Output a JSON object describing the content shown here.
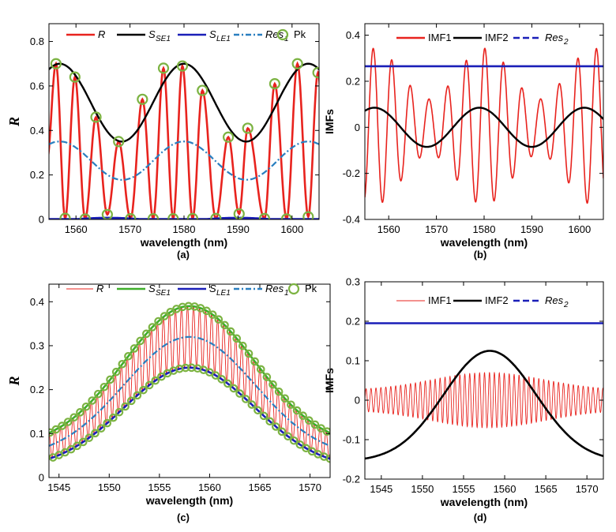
{
  "colors": {
    "R": "#e8231e",
    "SE": "#000000",
    "LE": "#1a1fb8",
    "Res": "#2a7fc0",
    "Pk": "#7cb342",
    "IMF1": "#e8231e",
    "IMF2": "#000000",
    "Res2": "#1a1fb8"
  },
  "chart_data": [
    {
      "id": "a",
      "type": "line",
      "caption": "(a)",
      "xlabel": "wavelength (nm)",
      "ylabel": "R",
      "xlim": [
        1555,
        1605
      ],
      "ylim": [
        0,
        0.88
      ],
      "xticks": [
        1560,
        1570,
        1580,
        1590,
        1600
      ],
      "yticks": [
        0,
        0.2,
        0.4,
        0.6,
        0.8
      ],
      "xtick_labels": [
        "1560",
        "1570",
        "1580",
        "1590",
        "1600"
      ],
      "ytick_labels": [
        "0",
        "0.2",
        "0.4",
        "0.6",
        "0.8"
      ],
      "legend": [
        {
          "name": "R",
          "sub": "",
          "style": "solid-red"
        },
        {
          "name": "S",
          "sub": "SE1",
          "style": "solid-black"
        },
        {
          "name": "S",
          "sub": "LE1",
          "style": "solid-blue"
        },
        {
          "name": "Res",
          "sub": "1",
          "style": "dash-cyan"
        },
        {
          "name": "Pk",
          "sub": "",
          "style": "circle-green"
        }
      ],
      "peaks_upper": [
        [
          1556.3,
          0.7
        ],
        [
          1559.8,
          0.64
        ],
        [
          1563.7,
          0.46
        ],
        [
          1567.9,
          0.35
        ],
        [
          1572.3,
          0.54
        ],
        [
          1576.2,
          0.68
        ],
        [
          1579.7,
          0.69
        ],
        [
          1583.4,
          0.58
        ],
        [
          1588.2,
          0.37
        ],
        [
          1591.8,
          0.41
        ],
        [
          1596.8,
          0.61
        ],
        [
          1601.0,
          0.7
        ],
        [
          1604.8,
          0.66
        ]
      ],
      "peaks_lower": [
        [
          1558.0,
          0.005
        ],
        [
          1561.7,
          0.002
        ],
        [
          1565.8,
          0.022
        ],
        [
          1570.1,
          0.003
        ],
        [
          1574.3,
          0.003
        ],
        [
          1578.0,
          0.003
        ],
        [
          1581.6,
          0.004
        ],
        [
          1585.9,
          0.004
        ],
        [
          1590.2,
          0.025
        ],
        [
          1594.9,
          0.004
        ],
        [
          1599.0,
          0.002
        ],
        [
          1603.0,
          0.012
        ]
      ]
    },
    {
      "id": "b",
      "type": "line",
      "caption": "(b)",
      "xlabel": "wavelength (nm)",
      "ylabel": "IMFs",
      "xlim": [
        1555,
        1605
      ],
      "ylim": [
        -0.4,
        0.45
      ],
      "xticks": [
        1560,
        1570,
        1580,
        1590,
        1600
      ],
      "yticks": [
        -0.4,
        -0.2,
        0,
        0.2,
        0.4
      ],
      "xtick_labels": [
        "1560",
        "1570",
        "1580",
        "1590",
        "1600"
      ],
      "ytick_labels": [
        "-0.4",
        "-0.2",
        "0",
        "0.2",
        "0.4"
      ],
      "legend": [
        {
          "name": "IMF1",
          "sub": "",
          "style": "solid-red"
        },
        {
          "name": "IMF2",
          "sub": "",
          "style": "solid-black"
        },
        {
          "name": "Res",
          "sub": "2",
          "style": "dash-blue"
        }
      ],
      "res2": 0.265
    },
    {
      "id": "c",
      "type": "line",
      "caption": "(c)",
      "xlabel": "wavelength (nm)",
      "ylabel": "R",
      "xlim": [
        1544,
        1572
      ],
      "ylim": [
        0,
        0.44
      ],
      "xticks": [
        1545,
        1550,
        1555,
        1560,
        1565,
        1570
      ],
      "yticks": [
        0,
        0.1,
        0.2,
        0.3,
        0.4
      ],
      "xtick_labels": [
        "1545",
        "1550",
        "1555",
        "1560",
        "1565",
        "1570"
      ],
      "ytick_labels": [
        "0",
        "0.1",
        "0.2",
        "0.3",
        "0.4"
      ],
      "legend": [
        {
          "name": "R",
          "sub": "",
          "style": "thin-red"
        },
        {
          "name": "S",
          "sub": "SE1",
          "style": "solid-green"
        },
        {
          "name": "S",
          "sub": "LE1",
          "style": "solid-blue"
        },
        {
          "name": "Res",
          "sub": "1",
          "style": "dash-cyan"
        },
        {
          "name": "Pk",
          "sub": "",
          "style": "circle-green"
        }
      ],
      "upper_envelope": {
        "base": 0.07,
        "amp": 0.32,
        "center": 1558,
        "sigma": 6.5
      },
      "lower_envelope": {
        "base": 0.02,
        "amp": 0.23,
        "center": 1558,
        "sigma": 6.5
      },
      "fringe_period_nm": 0.6
    },
    {
      "id": "d",
      "type": "line",
      "caption": "(d)",
      "xlabel": "wavelength (nm)",
      "ylabel": "IMFs",
      "xlim": [
        1543,
        1572
      ],
      "ylim": [
        -0.2,
        0.3
      ],
      "xticks": [
        1545,
        1550,
        1555,
        1560,
        1565,
        1570
      ],
      "yticks": [
        -0.2,
        -0.1,
        0,
        0.1,
        0.2,
        0.3
      ],
      "xtick_labels": [
        "1545",
        "1550",
        "1555",
        "1560",
        "1565",
        "1570"
      ],
      "ytick_labels": [
        "-0.2",
        "-0.1",
        "0",
        "0.1",
        "0.2",
        "0.3"
      ],
      "legend": [
        {
          "name": "IMF1",
          "sub": "",
          "style": "thin-red"
        },
        {
          "name": "IMF2",
          "sub": "",
          "style": "solid-black"
        },
        {
          "name": "Res",
          "sub": "2",
          "style": "dash-blue"
        }
      ],
      "res2": 0.195
    }
  ]
}
